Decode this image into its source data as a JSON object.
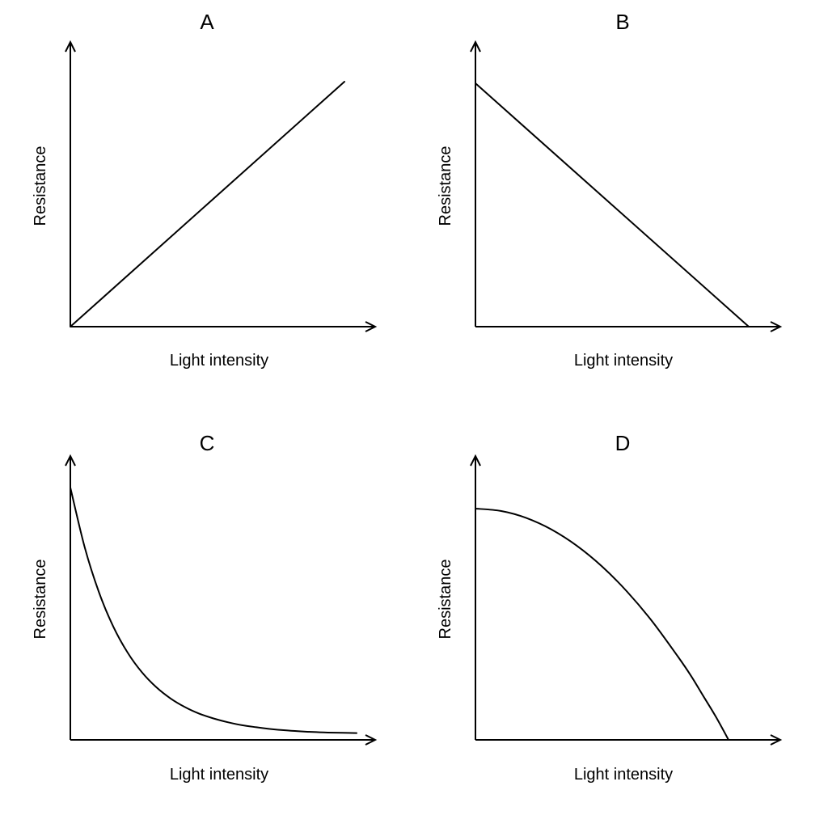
{
  "chart_data": [
    {
      "type": "line",
      "title": "A",
      "xlabel": "Light intensity",
      "ylabel": "Resistance",
      "xlim": [
        0,
        1
      ],
      "ylim": [
        0,
        1
      ],
      "x": [
        0,
        1
      ],
      "series": [
        {
          "values": [
            0,
            1
          ]
        }
      ]
    },
    {
      "type": "line",
      "title": "B",
      "xlabel": "Light intensity",
      "ylabel": "Resistance",
      "xlim": [
        0,
        1
      ],
      "ylim": [
        0,
        1
      ],
      "x": [
        0,
        1
      ],
      "series": [
        {
          "values": [
            1,
            0
          ]
        }
      ]
    },
    {
      "type": "line",
      "title": "C",
      "xlabel": "Light intensity",
      "ylabel": "Resistance",
      "xlim": [
        0,
        1
      ],
      "ylim": [
        0,
        1
      ],
      "x": [
        0,
        0.05,
        0.1,
        0.15,
        0.2,
        0.25,
        0.3,
        0.35,
        0.4,
        0.45,
        0.5,
        0.55,
        0.6,
        0.65,
        0.7,
        0.75,
        0.8,
        0.85,
        0.9,
        0.95,
        1.0
      ],
      "series": [
        {
          "values": [
            1.0,
            0.764,
            0.585,
            0.449,
            0.346,
            0.268,
            0.209,
            0.164,
            0.13,
            0.104,
            0.085,
            0.07,
            0.058,
            0.05,
            0.043,
            0.038,
            0.034,
            0.031,
            0.029,
            0.028,
            0.027
          ]
        }
      ]
    },
    {
      "type": "line",
      "title": "D",
      "xlabel": "Light intensity",
      "ylabel": "Resistance",
      "xlim": [
        0,
        1
      ],
      "ylim": [
        0,
        1
      ],
      "x": [
        0,
        0.1,
        0.2,
        0.3,
        0.4,
        0.5,
        0.6,
        0.7,
        0.8,
        0.85,
        0.9,
        0.95,
        1.0
      ],
      "series": [
        {
          "values": [
            1.0,
            0.99,
            0.96,
            0.91,
            0.84,
            0.75,
            0.64,
            0.51,
            0.36,
            0.28,
            0.19,
            0.1,
            0.0
          ]
        }
      ]
    }
  ]
}
